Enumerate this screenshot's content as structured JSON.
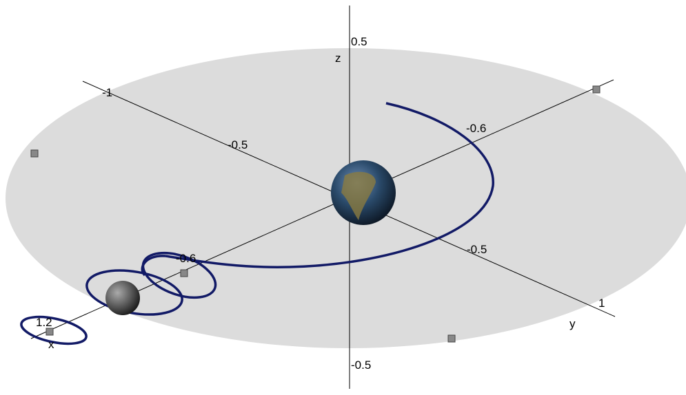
{
  "axes": {
    "z_label": "z",
    "y_label": "y",
    "x_label": "x",
    "z_ticks": [
      "0.5",
      "-0.5"
    ],
    "diag1_ticks": [
      "-1",
      "-0.5",
      "-0.5",
      "1"
    ],
    "diag2_ticks": [
      "-0.6",
      "-0.6",
      "1.2"
    ]
  }
}
